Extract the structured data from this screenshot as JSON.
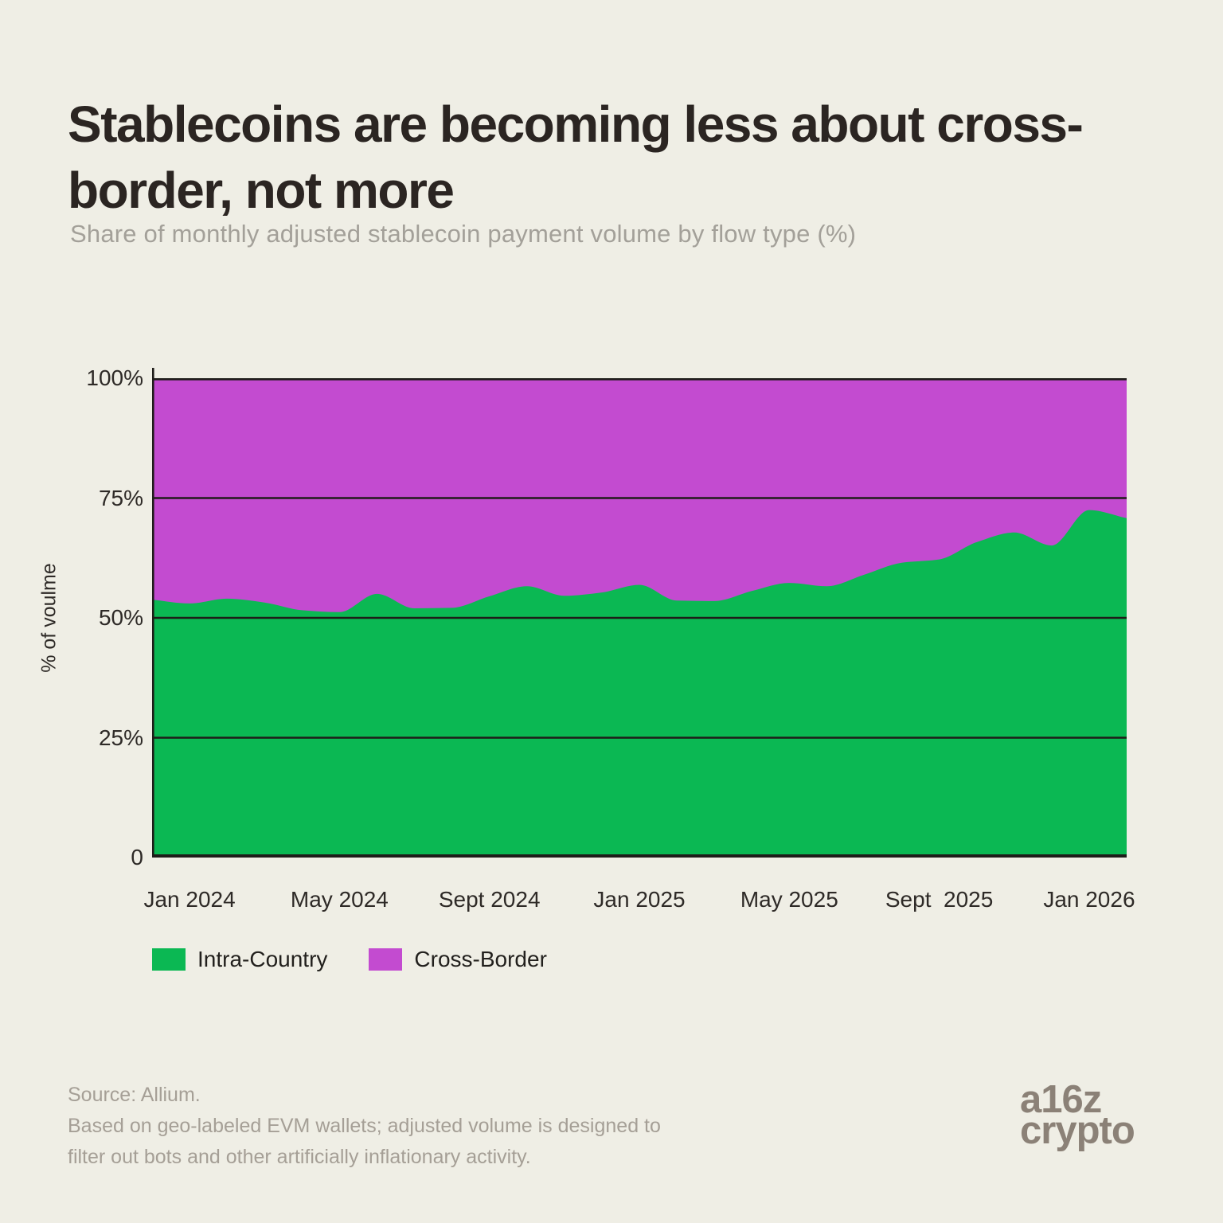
{
  "title": "Stablecoins are becoming less about cross-border, not more",
  "subtitle": "Share of monthly adjusted stablecoin payment volume by flow type (%)",
  "colors": {
    "background": "#efeee5",
    "intra_country_green": "#0bb853",
    "cross_border_purple": "#c34bd0",
    "gridline": "#1e1c19",
    "title_text": "#2b2522",
    "muted_text": "#a3a099",
    "source_text": "#a59f96",
    "logo_text": "#8b8177"
  },
  "chart_data": {
    "type": "area",
    "stacked": true,
    "grid": "horizontal",
    "legend_position": "bottom-left",
    "ylabel": "% of voulme",
    "ylim": [
      0,
      100
    ],
    "x": [
      "Dec 2023",
      "Jan 2024",
      "Feb 2024",
      "Mar 2024",
      "Apr 2024",
      "May 2024",
      "Jun 2024",
      "Jul 2024",
      "Aug 2024",
      "Sep 2024",
      "Oct 2024",
      "Nov 2024",
      "Dec 2024",
      "Jan 2025",
      "Feb 2025",
      "Mar 2025",
      "Apr 2025",
      "May 2025",
      "Jun 2025",
      "Jul 2025",
      "Aug 2025",
      "Sep 2025",
      "Oct 2025",
      "Nov 2025",
      "Dec 2025",
      "Jan 2026",
      "Feb 2026"
    ],
    "series": [
      {
        "name": "Intra-Country",
        "color": "#0bb853",
        "values": [
          53.8,
          53.0,
          54.0,
          53.2,
          51.6,
          51.2,
          55.0,
          52.0,
          52.1,
          54.5,
          56.6,
          54.6,
          55.3,
          56.9,
          53.6,
          53.5,
          55.6,
          57.3,
          56.6,
          59.0,
          61.5,
          62.2,
          65.8,
          67.8,
          65.1,
          72.5,
          70.8
        ]
      },
      {
        "name": "Cross-Border",
        "color": "#c34bd0",
        "values": [
          46.2,
          47.0,
          46.0,
          46.8,
          48.4,
          48.8,
          45.0,
          48.0,
          47.9,
          45.5,
          43.4,
          45.4,
          44.7,
          43.1,
          46.4,
          46.5,
          44.4,
          42.7,
          43.4,
          41.0,
          38.5,
          37.8,
          34.2,
          32.2,
          34.9,
          27.5,
          29.2
        ]
      }
    ],
    "y_ticks": [
      {
        "label": "100%",
        "value": 100
      },
      {
        "label": "75%",
        "value": 75
      },
      {
        "label": "50%",
        "value": 50
      },
      {
        "label": "25%",
        "value": 25
      },
      {
        "label": "0",
        "value": 0
      }
    ],
    "x_ticks": [
      {
        "label": "Jan 2024",
        "index": 1
      },
      {
        "label": "May 2024",
        "index": 5
      },
      {
        "label": "Sept 2024",
        "index": 9
      },
      {
        "label": "Jan 2025",
        "index": 13
      },
      {
        "label": "May 2025",
        "index": 17
      },
      {
        "label": "Sept  2025",
        "index": 21
      },
      {
        "label": "Jan 2026",
        "index": 25
      }
    ]
  },
  "legend": {
    "items": [
      {
        "label": "Intra-Country",
        "color": "#0bb853"
      },
      {
        "label": "Cross-Border",
        "color": "#c34bd0"
      }
    ]
  },
  "source": "Source: Allium.\nBased on geo-labeled EVM wallets; adjusted volume is designed to\nfilter out bots and other artificially inflationary activity.",
  "logo": {
    "line1": "a16z",
    "line2": "crypto"
  }
}
